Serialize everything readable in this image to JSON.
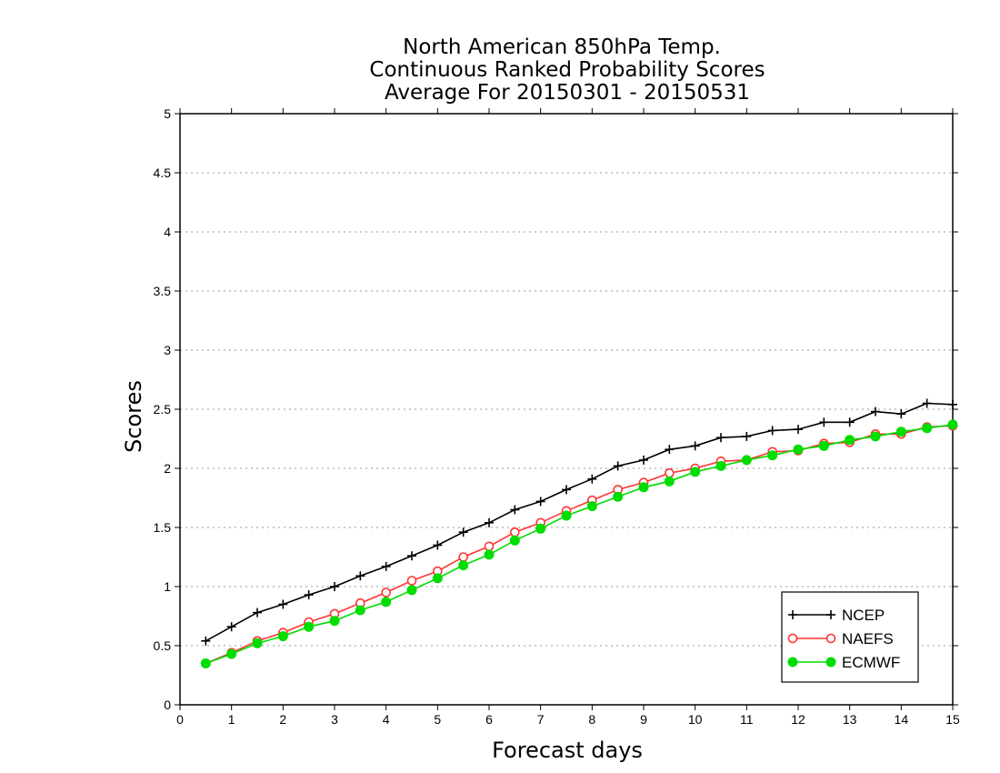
{
  "chart_data": {
    "type": "line",
    "title": [
      "North American 850hPa Temp.",
      "Continuous Ranked Probability Scores",
      "Average For 20150301 - 20150531"
    ],
    "xlabel": "Forecast days",
    "ylabel": "Scores",
    "xlim": [
      0,
      15
    ],
    "ylim": [
      0,
      5
    ],
    "xticks": [
      "0",
      "1",
      "2",
      "3",
      "4",
      "5",
      "6",
      "7",
      "8",
      "9",
      "10",
      "11",
      "12",
      "13",
      "14",
      "15"
    ],
    "yticks": [
      "0",
      "0.5",
      "1",
      "1.5",
      "2",
      "2.5",
      "3",
      "3.5",
      "4",
      "4.5",
      "5"
    ],
    "grid": "horizontal dotted",
    "legend_position": "bottom-right",
    "x": [
      0.5,
      1,
      1.5,
      2,
      2.5,
      3,
      3.5,
      4,
      4.5,
      5,
      5.5,
      6,
      6.5,
      7,
      7.5,
      8,
      8.5,
      9,
      9.5,
      10,
      10.5,
      11,
      11.5,
      12,
      12.5,
      13,
      13.5,
      14,
      14.5,
      15
    ],
    "series": [
      {
        "name": "NCEP",
        "color": "#000000",
        "marker": "plus",
        "values": [
          0.54,
          0.66,
          0.78,
          0.85,
          0.93,
          1.0,
          1.09,
          1.17,
          1.26,
          1.35,
          1.46,
          1.54,
          1.65,
          1.72,
          1.82,
          1.91,
          2.02,
          2.07,
          2.16,
          2.19,
          2.26,
          2.27,
          2.32,
          2.33,
          2.39,
          2.39,
          2.48,
          2.46,
          2.55,
          2.54
        ]
      },
      {
        "name": "NAEFS",
        "color": "#ff3333",
        "marker": "open-circle",
        "values": [
          0.35,
          0.44,
          0.54,
          0.61,
          0.7,
          0.77,
          0.86,
          0.95,
          1.05,
          1.13,
          1.25,
          1.34,
          1.46,
          1.54,
          1.64,
          1.73,
          1.82,
          1.88,
          1.96,
          2.0,
          2.06,
          2.07,
          2.14,
          2.15,
          2.21,
          2.22,
          2.29,
          2.29,
          2.35,
          2.36
        ]
      },
      {
        "name": "ECMWF",
        "color": "#00dd00",
        "marker": "filled-circle",
        "values": [
          0.35,
          0.43,
          0.52,
          0.58,
          0.66,
          0.71,
          0.8,
          0.87,
          0.97,
          1.07,
          1.18,
          1.27,
          1.39,
          1.49,
          1.6,
          1.68,
          1.76,
          1.84,
          1.89,
          1.97,
          2.02,
          2.07,
          2.11,
          2.16,
          2.19,
          2.24,
          2.27,
          2.31,
          2.34,
          2.37
        ]
      }
    ]
  }
}
